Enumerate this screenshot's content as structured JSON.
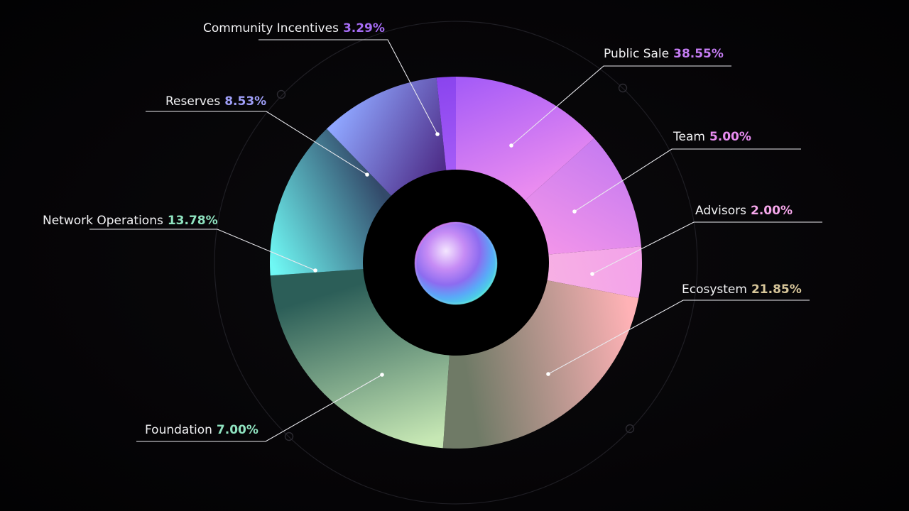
{
  "chart_data": {
    "type": "pie",
    "slices": [
      {
        "label": "Public Sale",
        "value": 38.55,
        "value_text": "38.55%",
        "value_color": "#c57cf3",
        "colors": [
          "#a65cf7",
          "#ea8cf0"
        ]
      },
      {
        "label": "Team",
        "value": 5.0,
        "value_text": "5.00%",
        "value_color": "#e78cf0",
        "colors": [
          "#c87cf0",
          "#f194ea"
        ]
      },
      {
        "label": "Advisors",
        "value": 2.0,
        "value_text": "2.00%",
        "value_color": "#f5a7ea",
        "colors": [
          "#f3a2ea",
          "#f7b0e4"
        ]
      },
      {
        "label": "Ecosystem",
        "value": 21.85,
        "value_text": "21.85%",
        "value_color": "#d7c69a",
        "colors": [
          "#ffb2b6",
          "#6f7a66"
        ]
      },
      {
        "label": "Foundation",
        "value": 7.0,
        "value_text": "7.00%",
        "value_color": "#8fe3c0",
        "colors": [
          "#c6e7b4",
          "#2c5e58"
        ]
      },
      {
        "label": "Network Operations",
        "value": 13.78,
        "value_text": "13.78%",
        "value_color": "#8fe3c0",
        "colors": [
          "#6ff8f4",
          "#334a6a"
        ]
      },
      {
        "label": "Reserves",
        "value": 8.53,
        "value_text": "8.53%",
        "value_color": "#9f9ff8",
        "colors": [
          "#8fa6ff",
          "#4e2d88"
        ]
      },
      {
        "label": "Community Incentives",
        "value": 3.29,
        "value_text": "3.29%",
        "value_color": "#a66cf4",
        "colors": [
          "#8a44ee",
          "#a55cf7"
        ]
      }
    ]
  }
}
